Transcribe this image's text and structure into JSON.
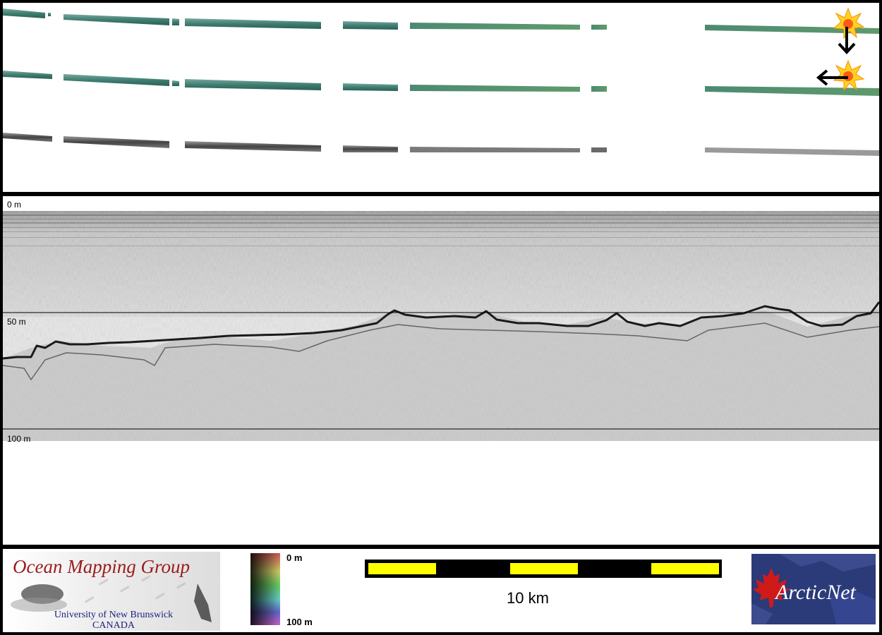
{
  "profile_labels": {
    "top_depth": "0 m",
    "mid_depth": "50 m",
    "bottom_depth": "100 m"
  },
  "footer": {
    "omg_logo_title": "Ocean Mapping Group",
    "omg_logo_line1": "University of New Brunswick",
    "omg_logo_line2": "CANADA",
    "legend_top": "0 m",
    "legend_bottom": "100 m",
    "scale_label": "10 km",
    "arcticnet_logo": "ArcticNet"
  },
  "colors": {
    "swath_color": "#3f7f72",
    "swath_gray": "#555555",
    "scale_yellow": "#ffff00",
    "omg_red": "#9b1c1c",
    "omg_blue": "#1a237e",
    "arcticnet_blue": "#2b3a78",
    "maple_red": "#d01a1a"
  },
  "icons": [
    "sun-marker-icon",
    "arrow-down-icon",
    "arrow-left-icon",
    "maple-leaf-icon"
  ]
}
